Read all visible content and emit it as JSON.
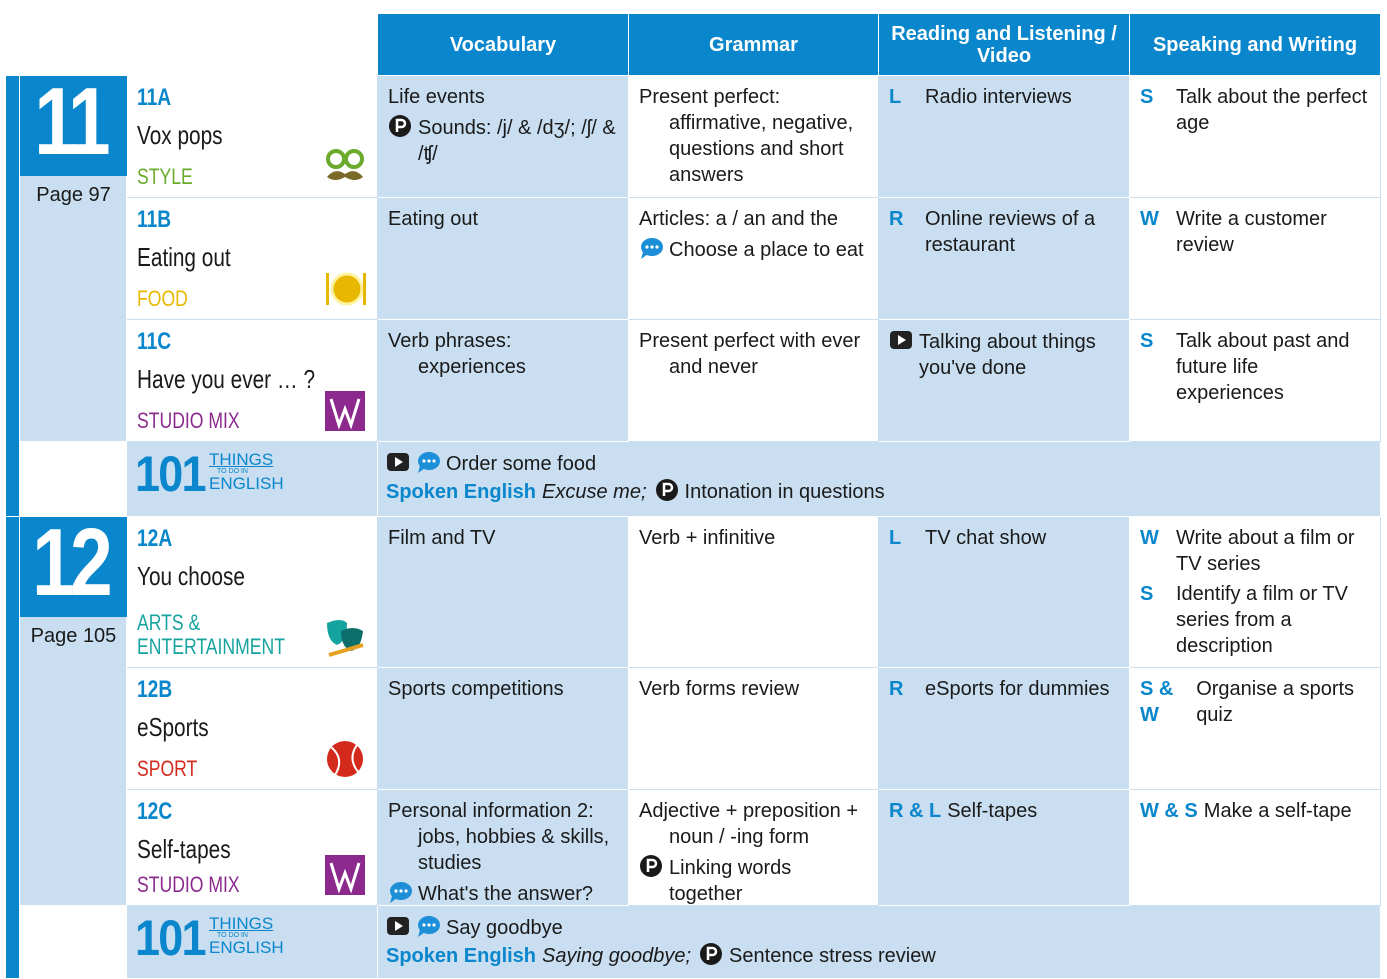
{
  "header": {
    "columns": [
      "Vocabulary",
      "Grammar",
      "Reading and Listening / Video",
      "Speaking and Writing"
    ]
  },
  "units": [
    {
      "number": "11",
      "page": "Page 97",
      "lessons": [
        {
          "code": "11A",
          "title": "Vox pops",
          "theme": "STYLE",
          "theme_color": "#6aab2c",
          "icon": "glasses",
          "vocabulary": [
            {
              "text": "Life events"
            },
            {
              "icon": "p",
              "text": "Sounds: /j/ & /dʒ/; /ʃ/ & /ʧ/"
            }
          ],
          "grammar": [
            {
              "text": "Present perfect: affirmative, negative, questions and short answers"
            }
          ],
          "reading": [
            {
              "tag": "L",
              "text": "Radio interviews"
            }
          ],
          "speaking": [
            {
              "tag": "S",
              "text": "Talk about the perfect age"
            }
          ]
        },
        {
          "code": "11B",
          "title": "Eating out",
          "theme": "FOOD",
          "theme_color": "#e8b800",
          "icon": "plate",
          "vocabulary": [
            {
              "text": "Eating out"
            }
          ],
          "grammar": [
            {
              "text": "Articles: a / an and the"
            },
            {
              "icon": "speech",
              "text": "Choose a place to eat"
            }
          ],
          "reading": [
            {
              "tag": "R",
              "text": "Online reviews of a restaurant"
            }
          ],
          "speaking": [
            {
              "tag": "W",
              "text": "Write a customer review"
            }
          ]
        },
        {
          "code": "11C",
          "title": "Have you ever … ?",
          "theme": "STUDIO MIX",
          "theme_color": "#8b2a8c",
          "icon": "studio",
          "vocabulary": [
            {
              "text": "Verb phrases: experiences"
            }
          ],
          "grammar": [
            {
              "text": "Present perfect with ever and never"
            }
          ],
          "reading": [
            {
              "icon": "video",
              "text": "Talking about things you've done"
            }
          ],
          "speaking": [
            {
              "tag": "S",
              "text": "Talk about past and future life experiences"
            }
          ]
        }
      ],
      "things": {
        "logo_number": "101",
        "logo_top": "THINGS",
        "logo_mid": "TO DO IN",
        "logo_bottom": "ENGLISH",
        "line1": "Order some food",
        "spoken_label": "Spoken English",
        "spoken_text": "Excuse me;",
        "stress_text": "Intonation in questions"
      }
    },
    {
      "number": "12",
      "page": "Page 105",
      "lessons": [
        {
          "code": "12A",
          "title": "You choose",
          "theme": "ARTS & ENTERTAINMENT",
          "theme_color": "#15a3a0",
          "icon": "masks",
          "vocabulary": [
            {
              "text": "Film and TV"
            }
          ],
          "grammar": [
            {
              "text": "Verb + infinitive"
            }
          ],
          "reading": [
            {
              "tag": "L",
              "text": "TV chat show"
            }
          ],
          "speaking": [
            {
              "tag": "W",
              "text": "Write about a film or TV series"
            },
            {
              "tag": "S",
              "text": "Identify a film or TV series from a description"
            }
          ]
        },
        {
          "code": "12B",
          "title": "eSports",
          "theme": "SPORT",
          "theme_color": "#d42a1e",
          "icon": "ball",
          "vocabulary": [
            {
              "text": "Sports competitions"
            }
          ],
          "grammar": [
            {
              "text": "Verb forms review"
            }
          ],
          "reading": [
            {
              "tag": "R",
              "text": "eSports for dummies"
            }
          ],
          "speaking": [
            {
              "tag": "S & W",
              "text": "Organise a sports quiz"
            }
          ]
        },
        {
          "code": "12C",
          "title": "Self-tapes",
          "theme": "STUDIO MIX",
          "theme_color": "#8b2a8c",
          "icon": "studio",
          "vocabulary": [
            {
              "text": "Personal information 2: jobs, hobbies & skills, studies"
            },
            {
              "icon": "speech",
              "text": "What's the answer?"
            }
          ],
          "grammar": [
            {
              "text": "Adjective + preposition + noun / -ing form"
            },
            {
              "icon": "p",
              "text": "Linking words together"
            }
          ],
          "reading": [
            {
              "tag": "R & L",
              "text": "Self-tapes"
            }
          ],
          "speaking": [
            {
              "tag": "W & S",
              "text": "Make a self-tape"
            }
          ]
        }
      ],
      "things": {
        "logo_number": "101",
        "logo_top": "THINGS",
        "logo_mid": "TO DO IN",
        "logo_bottom": "ENGLISH",
        "line1": "Say goodbye",
        "spoken_label": "Spoken English",
        "spoken_text": "Saying goodbye;",
        "stress_text": "Sentence stress review"
      }
    }
  ]
}
